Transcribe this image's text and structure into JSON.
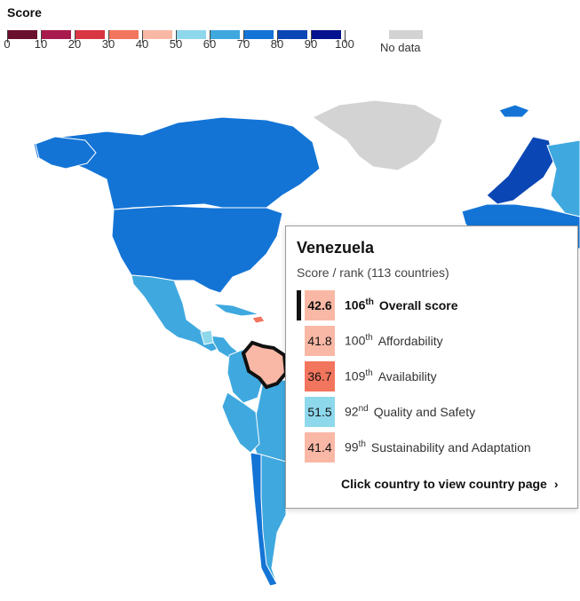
{
  "legend": {
    "title": "Score",
    "ticks": [
      "0",
      "10",
      "20",
      "30",
      "40",
      "50",
      "60",
      "70",
      "80",
      "90",
      "100"
    ],
    "colors": [
      "#6b0f2f",
      "#a81a4d",
      "#d93644",
      "#f2755e",
      "#f9b8a5",
      "#8ed8ec",
      "#3fa9df",
      "#1374d6",
      "#0b46b5",
      "#06138f"
    ],
    "no_data_label": "No data",
    "no_data_color": "#d3d3d3"
  },
  "tooltip": {
    "country": "Venezuela",
    "subtitle": "Score / rank (113 countries)",
    "rows": [
      {
        "score": "42.6",
        "rank_num": "106",
        "rank_suffix": "th",
        "label": "Overall score",
        "color": "#f9b8a5",
        "emphasis": true
      },
      {
        "score": "41.8",
        "rank_num": "100",
        "rank_suffix": "th",
        "label": "Affordability",
        "color": "#f9b8a5",
        "emphasis": false
      },
      {
        "score": "36.7",
        "rank_num": "109",
        "rank_suffix": "th",
        "label": "Availability",
        "color": "#f2755e",
        "emphasis": false
      },
      {
        "score": "51.5",
        "rank_num": "92",
        "rank_suffix": "nd",
        "label": "Quality and Safety",
        "color": "#8ed8ec",
        "emphasis": false
      },
      {
        "score": "41.4",
        "rank_num": "99",
        "rank_suffix": "th",
        "label": "Sustainability and Adaptation",
        "color": "#f9b8a5",
        "emphasis": false
      }
    ],
    "footer": "Click country to view country page",
    "footer_icon": "chevron-right-icon"
  },
  "map": {
    "highlighted_country": "Venezuela",
    "highlight_color": "#f9b8a5",
    "colors": {
      "north_america": "#1374d6",
      "mexico": "#3fa9df",
      "greenland": "#d3d3d3",
      "south_america_main": "#3fa9df",
      "brazil": "#3fa9df",
      "chile": "#1374d6",
      "europe_dark": "#0b46b5",
      "europe_mid": "#1374d6",
      "europe_light": "#3fa9df",
      "cuba": "#3fa9df",
      "haiti": "#f2755e",
      "caribbean_light": "#8ed8ec",
      "sea": "#ffffff"
    }
  }
}
